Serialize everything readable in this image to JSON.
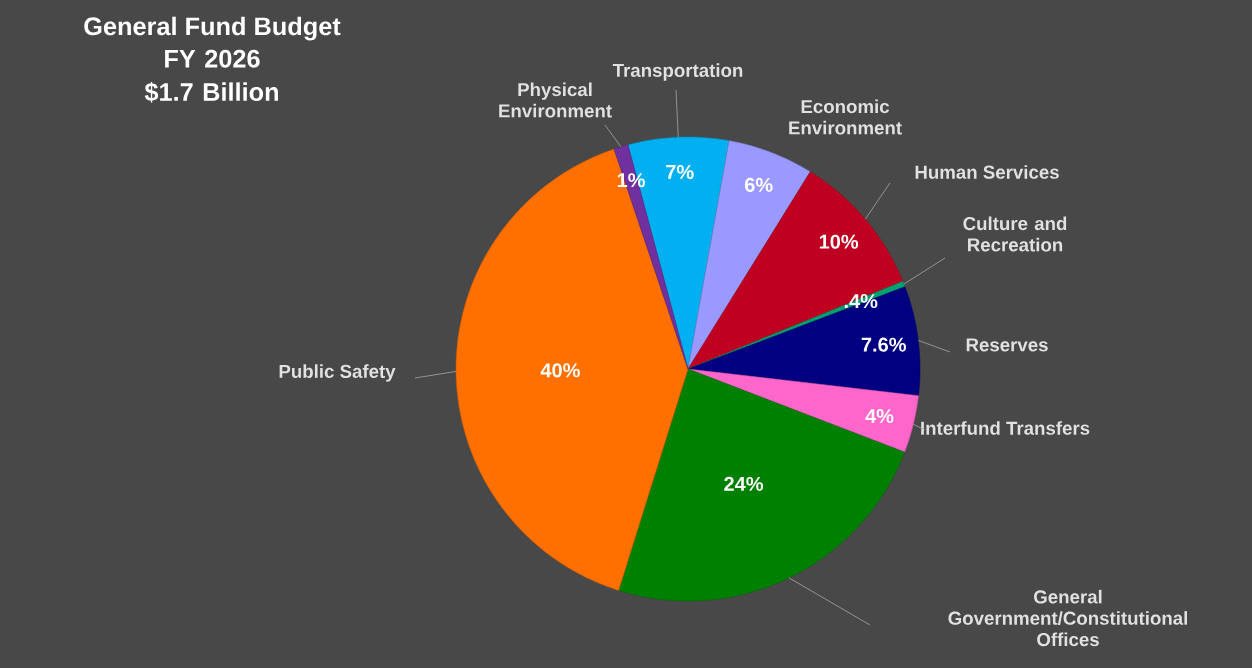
{
  "chart_data": {
    "type": "pie",
    "title": "General Fund Budget",
    "subtitle": "FY 2026 $1.7 Billion",
    "categories": [
      "Transportation",
      "Economic Environment",
      "Human Services",
      "Culture and Recreation",
      "Reserves",
      "Interfund Transfers",
      "General Government/Constitutional Offices",
      "Public Safety",
      "Physical Environment"
    ],
    "values": [
      7,
      6,
      10,
      0.4,
      7.6,
      4,
      24,
      40,
      1
    ],
    "colors": [
      "#00b0f0",
      "#9999ff",
      "#c00020",
      "#00a070",
      "#000080",
      "#ff66cc",
      "#008000",
      "#ff7000",
      "#7030a0"
    ],
    "value_labels": [
      "7%",
      "6%",
      "10%",
      ".4%",
      "7.6%",
      "4%",
      "24%",
      "40%",
      "1%"
    ]
  }
}
